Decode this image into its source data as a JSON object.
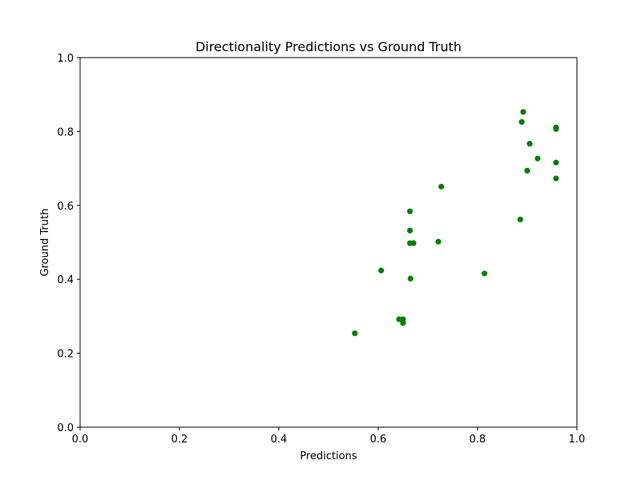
{
  "chart_data": {
    "type": "scatter",
    "title": "Directionality Predictions vs Ground Truth",
    "xlabel": "Predictions",
    "ylabel": "Ground Truth",
    "xlim": [
      0.0,
      1.0
    ],
    "ylim": [
      0.0,
      1.0
    ],
    "xticks": [
      "0.0",
      "0.2",
      "0.4",
      "0.6",
      "0.8",
      "1.0"
    ],
    "yticks": [
      "0.0",
      "0.2",
      "0.4",
      "0.6",
      "0.8",
      "1.0"
    ],
    "grid": false,
    "marker_color": "#008000",
    "points": [
      {
        "x": 0.553,
        "y": 0.254
      },
      {
        "x": 0.606,
        "y": 0.424
      },
      {
        "x": 0.642,
        "y": 0.292
      },
      {
        "x": 0.65,
        "y": 0.282
      },
      {
        "x": 0.65,
        "y": 0.292
      },
      {
        "x": 0.664,
        "y": 0.584
      },
      {
        "x": 0.664,
        "y": 0.532
      },
      {
        "x": 0.664,
        "y": 0.498
      },
      {
        "x": 0.671,
        "y": 0.498
      },
      {
        "x": 0.665,
        "y": 0.402
      },
      {
        "x": 0.721,
        "y": 0.502
      },
      {
        "x": 0.727,
        "y": 0.651
      },
      {
        "x": 0.814,
        "y": 0.416
      },
      {
        "x": 0.886,
        "y": 0.562
      },
      {
        "x": 0.889,
        "y": 0.826
      },
      {
        "x": 0.892,
        "y": 0.853
      },
      {
        "x": 0.9,
        "y": 0.694
      },
      {
        "x": 0.905,
        "y": 0.767
      },
      {
        "x": 0.921,
        "y": 0.727
      },
      {
        "x": 0.958,
        "y": 0.811
      },
      {
        "x": 0.958,
        "y": 0.807
      },
      {
        "x": 0.958,
        "y": 0.716
      },
      {
        "x": 0.958,
        "y": 0.673
      }
    ]
  }
}
